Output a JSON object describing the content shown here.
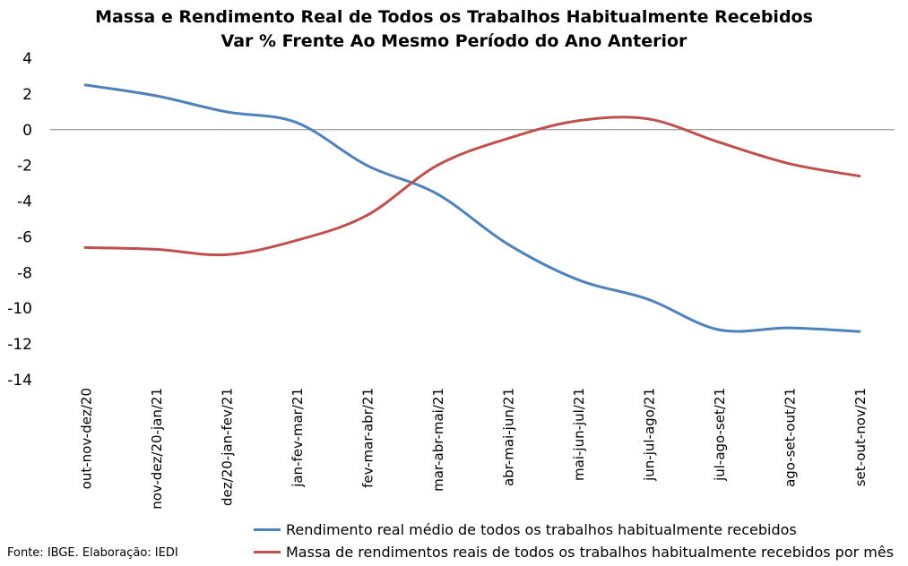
{
  "chart_data": {
    "type": "line",
    "title": "Massa e Rendimento Real de Todos os Trabalhos Habitualmente Recebidos",
    "subtitle": "Var % Frente Ao Mesmo Período do Ano Anterior",
    "xlabel": "",
    "ylabel": "",
    "ylim": [
      -14,
      4
    ],
    "yticks": [
      "4",
      "2",
      "0",
      "-2",
      "-4",
      "-6",
      "-8",
      "-10",
      "-12",
      "-14"
    ],
    "grid": false,
    "legend_position": "bottom",
    "categories": [
      "out-nov-dez/20",
      "nov-dez/20-jan/21",
      "dez/20-jan-fev/21",
      "jan-fev-mar/21",
      "fev-mar-abr/21",
      "mar-abr-mai/21",
      "abr-mai-jun/21",
      "mai-jun-jul/21",
      "jun-jul-ago/21",
      "jul-ago-set/21",
      "ago-set-out/21",
      "set-out-nov/21"
    ],
    "series": [
      {
        "name": "Rendimento real médio de todos os trabalhos habitualmente recebidos",
        "color": "#4f81bd",
        "values": [
          2.5,
          1.9,
          1.0,
          0.4,
          -2.0,
          -3.6,
          -6.4,
          -8.4,
          -9.5,
          -11.2,
          -11.1,
          -11.3
        ]
      },
      {
        "name": "Massa de rendimentos reais de todos os trabalhos habitualmente recebidos por mês",
        "color": "#c0504d",
        "values": [
          -6.6,
          -6.7,
          -7.0,
          -6.2,
          -4.8,
          -2.0,
          -0.5,
          0.5,
          0.6,
          -0.7,
          -1.9,
          -2.6
        ]
      }
    ]
  },
  "source": "Fonte: IBGE. Elaboração: IEDI"
}
